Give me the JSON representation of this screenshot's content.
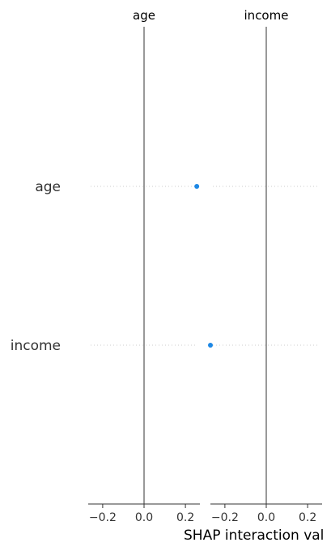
{
  "chart_data": {
    "type": "scatter",
    "features": [
      "age",
      "income"
    ],
    "panels": [
      {
        "title": "age",
        "xlim": [
          -0.27,
          0.27
        ],
        "ticks": [
          -0.2,
          0.0,
          0.2
        ],
        "tick_labels": [
          "−0.2",
          "0.0",
          "0.2"
        ],
        "points": [
          {
            "feature": "age",
            "value": 0.255
          }
        ]
      },
      {
        "title": "income",
        "xlim": [
          -0.27,
          0.27
        ],
        "ticks": [
          -0.2,
          0.0,
          0.2
        ],
        "tick_labels": [
          "−0.2",
          "0.0",
          "0.2"
        ],
        "points": [
          {
            "feature": "income",
            "value": -0.27
          }
        ]
      }
    ],
    "xlabel": "SHAP interaction val",
    "grid": false,
    "colors": {
      "point": "#1e88e5",
      "zero_line": "#999999",
      "axis": "#333333",
      "row_line": "#cccccc"
    }
  }
}
